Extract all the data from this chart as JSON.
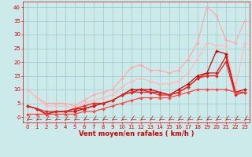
{
  "xlabel": "Vent moyen/en rafales ( km/h )",
  "xlim": [
    -0.5,
    23.5
  ],
  "ylim": [
    -2,
    42
  ],
  "bg_color": "#cceaea",
  "grid_color": "#a0c8c8",
  "series": [
    {
      "x": [
        0,
        1,
        2,
        3,
        4,
        5,
        6,
        7,
        8,
        9,
        10,
        11,
        12,
        13,
        14,
        15,
        16,
        17,
        18,
        19,
        20,
        21,
        22,
        23
      ],
      "y": [
        10,
        7,
        5,
        5,
        5,
        4,
        6,
        8,
        9,
        10,
        14,
        18,
        19,
        17,
        17,
        16,
        17,
        21,
        27,
        40,
        37,
        28,
        27,
        35
      ],
      "color": "#ffaaaa",
      "lw": 0.9,
      "marker": "D",
      "ms": 2.0
    },
    {
      "x": [
        0,
        1,
        2,
        3,
        4,
        5,
        6,
        7,
        8,
        9,
        10,
        11,
        12,
        13,
        14,
        15,
        16,
        17,
        18,
        19,
        20,
        21,
        22,
        23
      ],
      "y": [
        10,
        7,
        4,
        4,
        4,
        3,
        5,
        6,
        7,
        8,
        11,
        13,
        14,
        13,
        12,
        12,
        13,
        16,
        21,
        27,
        26,
        26,
        10,
        27
      ],
      "color": "#ffbbbb",
      "lw": 0.9,
      "marker": "D",
      "ms": 2.0
    },
    {
      "x": [
        0,
        1,
        2,
        3,
        4,
        5,
        6,
        7,
        8,
        9,
        10,
        11,
        12,
        13,
        14,
        15,
        16,
        17,
        18,
        19,
        20,
        21,
        22,
        23
      ],
      "y": [
        4,
        3,
        1,
        2,
        2,
        2,
        3,
        4,
        5,
        6,
        8,
        10,
        10,
        10,
        9,
        8,
        10,
        12,
        15,
        16,
        24,
        23,
        9,
        10
      ],
      "color": "#cc0000",
      "lw": 0.9,
      "marker": "D",
      "ms": 2.0
    },
    {
      "x": [
        0,
        1,
        2,
        3,
        4,
        5,
        6,
        7,
        8,
        9,
        10,
        11,
        12,
        13,
        14,
        15,
        16,
        17,
        18,
        19,
        20,
        21,
        22,
        23
      ],
      "y": [
        4,
        3,
        1,
        2,
        2,
        3,
        3,
        4,
        5,
        6,
        8,
        9,
        10,
        9,
        9,
        8,
        9,
        11,
        14,
        16,
        16,
        22,
        9,
        9
      ],
      "color": "#dd1111",
      "lw": 0.9,
      "marker": "D",
      "ms": 2.0
    },
    {
      "x": [
        0,
        1,
        2,
        3,
        4,
        5,
        6,
        7,
        8,
        9,
        10,
        11,
        12,
        13,
        14,
        15,
        16,
        17,
        18,
        19,
        20,
        21,
        22,
        23
      ],
      "y": [
        4,
        3,
        2,
        2,
        2,
        3,
        4,
        5,
        5,
        6,
        8,
        9,
        9,
        9,
        8,
        8,
        9,
        11,
        14,
        15,
        15,
        20,
        8,
        9
      ],
      "color": "#ee2222",
      "lw": 0.9,
      "marker": "D",
      "ms": 2.0
    },
    {
      "x": [
        0,
        1,
        2,
        3,
        4,
        5,
        6,
        7,
        8,
        9,
        10,
        11,
        12,
        13,
        14,
        15,
        16,
        17,
        18,
        19,
        20,
        21,
        22,
        23
      ],
      "y": [
        1,
        1,
        1,
        1,
        1,
        1,
        2,
        2,
        3,
        4,
        5,
        6,
        7,
        7,
        7,
        7,
        8,
        9,
        10,
        10,
        10,
        10,
        9,
        9
      ],
      "color": "#ff4444",
      "lw": 0.9,
      "marker": "D",
      "ms": 2.0
    }
  ],
  "xticks": [
    0,
    1,
    2,
    3,
    4,
    5,
    6,
    7,
    8,
    9,
    10,
    11,
    12,
    13,
    14,
    15,
    16,
    17,
    18,
    19,
    20,
    21,
    22,
    23
  ],
  "yticks": [
    0,
    5,
    10,
    15,
    20,
    25,
    30,
    35,
    40
  ],
  "tick_color": "#cc0000",
  "tick_fontsize": 5.0,
  "xlabel_fontsize": 6.0,
  "arrow_color": "#cc0000"
}
